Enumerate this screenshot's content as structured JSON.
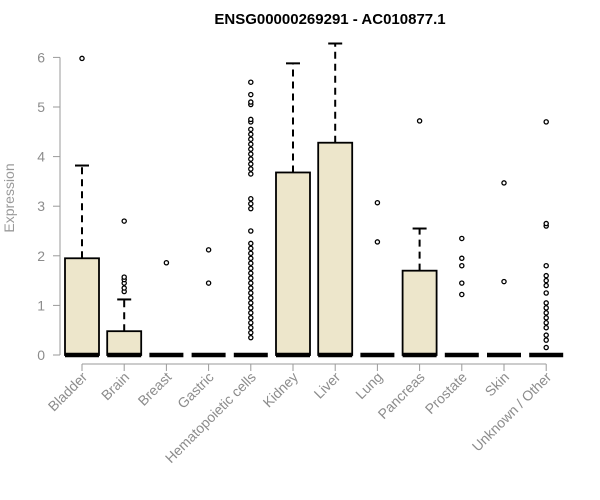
{
  "chart_data": {
    "type": "boxplot",
    "title": "ENSG00000269291 - AC010877.1",
    "ylabel": "Expression",
    "xlabel": "",
    "ylim": [
      0,
      6.3
    ],
    "yticks": [
      0,
      1,
      2,
      3,
      4,
      5,
      6
    ],
    "colors": {
      "box_fill": "#ede6cb",
      "box_stroke": "#000000",
      "axis": "#9a9a9a"
    },
    "categories": [
      "Bladder",
      "Brain",
      "Breast",
      "Gastric",
      "Hematopoietic cells",
      "Kidney",
      "Liver",
      "Lung",
      "Pancreas",
      "Prostate",
      "Skin",
      "Unknown / Other"
    ],
    "boxes": [
      {
        "category": "Bladder",
        "q1": 0,
        "median": 0,
        "q3": 1.95,
        "whisker_low": 0,
        "whisker_high": 3.82,
        "outliers": [
          5.98
        ]
      },
      {
        "category": "Brain",
        "q1": 0,
        "median": 0,
        "q3": 0.48,
        "whisker_low": 0,
        "whisker_high": 1.12,
        "outliers": [
          1.28,
          1.35,
          1.45,
          1.52,
          1.57,
          2.7
        ]
      },
      {
        "category": "Breast",
        "q1": 0,
        "median": 0,
        "q3": 0,
        "whisker_low": 0,
        "whisker_high": 0,
        "outliers": [
          1.86
        ]
      },
      {
        "category": "Gastric",
        "q1": 0,
        "median": 0,
        "q3": 0,
        "whisker_low": 0,
        "whisker_high": 0,
        "outliers": [
          1.45,
          2.12
        ]
      },
      {
        "category": "Hematopoietic cells",
        "q1": 0,
        "median": 0,
        "q3": 0,
        "whisker_low": 0,
        "whisker_high": 0,
        "outliers": [
          0.35,
          0.45,
          0.55,
          0.65,
          0.75,
          0.85,
          0.95,
          1.05,
          1.15,
          1.25,
          1.35,
          1.45,
          1.55,
          1.65,
          1.75,
          1.85,
          1.95,
          2.05,
          2.15,
          2.25,
          2.5,
          2.95,
          3.05,
          3.15,
          3.65,
          3.75,
          3.85,
          3.95,
          4.05,
          4.15,
          4.25,
          4.35,
          4.45,
          4.55,
          4.7,
          4.75,
          5.05,
          5.1,
          5.25,
          5.5
        ]
      },
      {
        "category": "Kidney",
        "q1": 0,
        "median": 0,
        "q3": 3.68,
        "whisker_low": 0,
        "whisker_high": 5.88,
        "outliers": []
      },
      {
        "category": "Liver",
        "q1": 0,
        "median": 0,
        "q3": 4.28,
        "whisker_low": 0,
        "whisker_high": 6.28,
        "outliers": []
      },
      {
        "category": "Lung",
        "q1": 0,
        "median": 0,
        "q3": 0,
        "whisker_low": 0,
        "whisker_high": 0,
        "outliers": [
          2.28,
          3.07
        ]
      },
      {
        "category": "Pancreas",
        "q1": 0,
        "median": 0,
        "q3": 1.7,
        "whisker_low": 0,
        "whisker_high": 2.55,
        "outliers": [
          4.72
        ]
      },
      {
        "category": "Prostate",
        "q1": 0,
        "median": 0,
        "q3": 0,
        "whisker_low": 0,
        "whisker_high": 0,
        "outliers": [
          1.22,
          1.45,
          1.8,
          1.95,
          2.35
        ]
      },
      {
        "category": "Skin",
        "q1": 0,
        "median": 0,
        "q3": 0,
        "whisker_low": 0,
        "whisker_high": 0,
        "outliers": [
          1.48,
          3.47
        ]
      },
      {
        "category": "Unknown / Other",
        "q1": 0,
        "median": 0,
        "q3": 0,
        "whisker_low": 0,
        "whisker_high": 0,
        "outliers": [
          0.15,
          0.3,
          0.4,
          0.55,
          0.65,
          0.75,
          0.85,
          0.95,
          1.05,
          1.25,
          1.4,
          1.5,
          1.6,
          1.8,
          2.6,
          2.65,
          4.7
        ]
      }
    ]
  }
}
